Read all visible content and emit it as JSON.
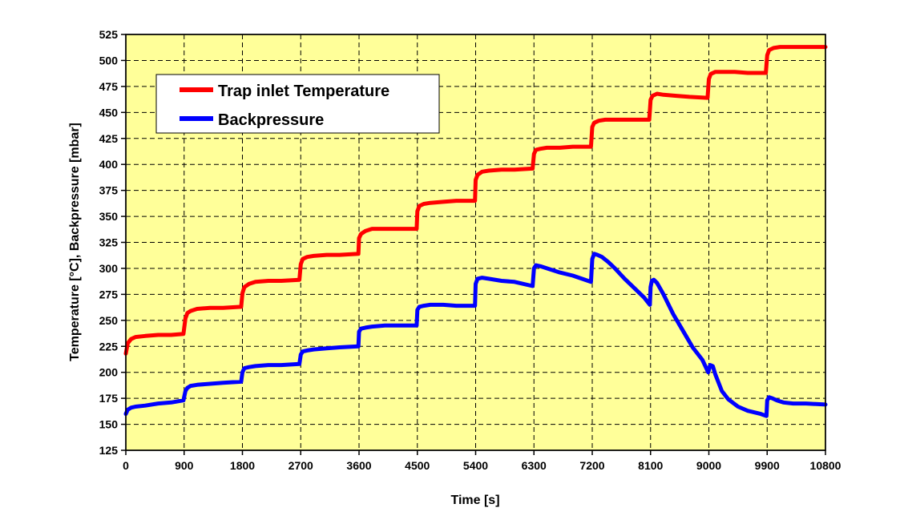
{
  "chart_data": {
    "type": "line",
    "xlabel": "Time [s]",
    "ylabel": "Temperature [°C],  Backpressure [mbar]",
    "xlim": [
      0,
      10800
    ],
    "ylim": [
      125,
      525
    ],
    "xticks": [
      0,
      900,
      1800,
      2700,
      3600,
      4500,
      5400,
      6300,
      7200,
      8100,
      9000,
      9900,
      10800
    ],
    "yticks": [
      125,
      150,
      175,
      200,
      225,
      250,
      275,
      300,
      325,
      350,
      375,
      400,
      425,
      450,
      475,
      500,
      525
    ],
    "grid": true,
    "legend": "top-left",
    "colors": {
      "plot_bg": "#FFFF99",
      "temperature": "#FF0000",
      "backpressure": "#0000FF"
    },
    "series": [
      {
        "name": "Trap inlet Temperature",
        "color": "#FF0000",
        "x": [
          0,
          30,
          80,
          150,
          300,
          500,
          700,
          890,
          920,
          950,
          1000,
          1100,
          1300,
          1500,
          1780,
          1800,
          1830,
          1900,
          2000,
          2200,
          2400,
          2680,
          2700,
          2730,
          2800,
          2900,
          3100,
          3300,
          3590,
          3600,
          3630,
          3700,
          3800,
          4000,
          4200,
          4490,
          4500,
          4530,
          4600,
          4700,
          4900,
          5100,
          5390,
          5400,
          5430,
          5500,
          5600,
          5800,
          6000,
          6280,
          6300,
          6330,
          6400,
          6500,
          6700,
          6900,
          7180,
          7200,
          7230,
          7300,
          7400,
          7600,
          7800,
          8080,
          8100,
          8130,
          8200,
          8300,
          8500,
          8700,
          8980,
          9000,
          9030,
          9100,
          9200,
          9400,
          9600,
          9880,
          9900,
          9930,
          10000,
          10100,
          10300,
          10500,
          10800
        ],
        "y": [
          218,
          228,
          232,
          234,
          235,
          236,
          236,
          237,
          252,
          257,
          259,
          261,
          262,
          262,
          263,
          276,
          282,
          285,
          287,
          288,
          288,
          289,
          304,
          309,
          311,
          312,
          313,
          313,
          314,
          329,
          333,
          336,
          338,
          338,
          338,
          338,
          355,
          360,
          362,
          363,
          364,
          365,
          365,
          385,
          390,
          393,
          394,
          395,
          395,
          396,
          410,
          414,
          415,
          416,
          416,
          417,
          417,
          436,
          440,
          442,
          443,
          443,
          443,
          443,
          462,
          466,
          468,
          467,
          466,
          465,
          464,
          482,
          487,
          489,
          489,
          489,
          488,
          488,
          505,
          510,
          512,
          513,
          513,
          513,
          513
        ]
      },
      {
        "name": "Backpressure",
        "color": "#0000FF",
        "x": [
          0,
          30,
          80,
          150,
          300,
          500,
          700,
          890,
          920,
          950,
          1000,
          1100,
          1300,
          1500,
          1780,
          1800,
          1830,
          1900,
          2000,
          2200,
          2400,
          2680,
          2700,
          2730,
          2800,
          2900,
          3100,
          3300,
          3590,
          3600,
          3630,
          3700,
          3800,
          4000,
          4200,
          4490,
          4500,
          4530,
          4600,
          4700,
          4900,
          5100,
          5390,
          5400,
          5430,
          5500,
          5600,
          5800,
          6000,
          6280,
          6300,
          6330,
          6400,
          6500,
          6700,
          6900,
          7180,
          7200,
          7230,
          7280,
          7350,
          7450,
          7550,
          7700,
          7850,
          8000,
          8090,
          8100,
          8120,
          8150,
          8200,
          8300,
          8450,
          8600,
          8750,
          8900,
          8990,
          9020,
          9060,
          9100,
          9200,
          9300,
          9450,
          9600,
          9800,
          9890,
          9900,
          9930,
          9980,
          10050,
          10150,
          10300,
          10500,
          10800
        ],
        "y": [
          160,
          164,
          166,
          167,
          168,
          170,
          171,
          173,
          182,
          185,
          187,
          188,
          189,
          190,
          191,
          200,
          204,
          205,
          206,
          207,
          207,
          208,
          217,
          220,
          221,
          222,
          223,
          224,
          225,
          239,
          242,
          243,
          244,
          245,
          245,
          245,
          260,
          263,
          264,
          265,
          265,
          264,
          264,
          285,
          290,
          291,
          290,
          288,
          287,
          283,
          300,
          303,
          302,
          300,
          296,
          293,
          287,
          309,
          314,
          313,
          311,
          306,
          300,
          290,
          281,
          272,
          265,
          282,
          288,
          289,
          286,
          275,
          256,
          240,
          224,
          212,
          200,
          207,
          206,
          198,
          182,
          174,
          167,
          163,
          160,
          158,
          173,
          176,
          175,
          173,
          171,
          170,
          170,
          169
        ]
      }
    ]
  }
}
